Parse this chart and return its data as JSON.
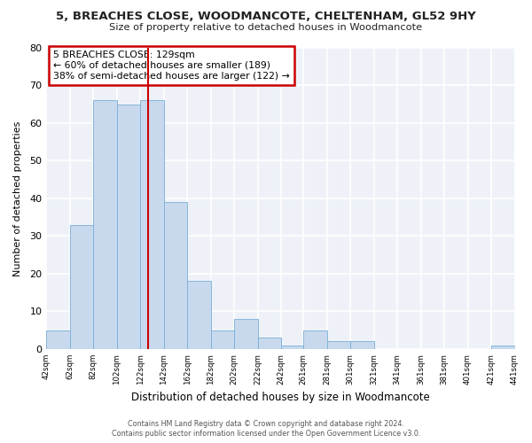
{
  "title": "5, BREACHES CLOSE, WOODMANCOTE, CHELTENHAM, GL52 9HY",
  "subtitle": "Size of property relative to detached houses in Woodmancote",
  "xlabel": "Distribution of detached houses by size in Woodmancote",
  "ylabel": "Number of detached properties",
  "bar_edges": [
    42,
    62,
    82,
    102,
    122,
    142,
    162,
    182,
    202,
    222,
    242,
    261,
    281,
    301,
    321,
    341,
    361,
    381,
    401,
    421,
    441
  ],
  "bar_heights": [
    5,
    33,
    66,
    65,
    66,
    39,
    18,
    5,
    8,
    3,
    1,
    5,
    2,
    2,
    0,
    0,
    0,
    0,
    0,
    1
  ],
  "bar_color": "#c8d9ee",
  "bar_edge_color": "#7aaed4",
  "property_size": 129,
  "vline_color": "#cc0000",
  "ylim": [
    0,
    80
  ],
  "yticks": [
    0,
    10,
    20,
    30,
    40,
    50,
    60,
    70,
    80
  ],
  "annotation_title": "5 BREACHES CLOSE: 129sqm",
  "annotation_line1": "← 60% of detached houses are smaller (189)",
  "annotation_line2": "38% of semi-detached houses are larger (122) →",
  "annotation_box_facecolor": "#ffffff",
  "annotation_box_edgecolor": "#cc0000",
  "footer_line1": "Contains HM Land Registry data © Crown copyright and database right 2024.",
  "footer_line2": "Contains public sector information licensed under the Open Government Licence v3.0.",
  "background_color": "#ffffff",
  "plot_bg_color": "#eef2f8",
  "grid_color": "#ffffff",
  "tick_labels": [
    "42sqm",
    "62sqm",
    "82sqm",
    "102sqm",
    "122sqm",
    "142sqm",
    "162sqm",
    "182sqm",
    "202sqm",
    "222sqm",
    "242sqm",
    "261sqm",
    "281sqm",
    "301sqm",
    "321sqm",
    "341sqm",
    "361sqm",
    "381sqm",
    "401sqm",
    "421sqm",
    "441sqm"
  ]
}
